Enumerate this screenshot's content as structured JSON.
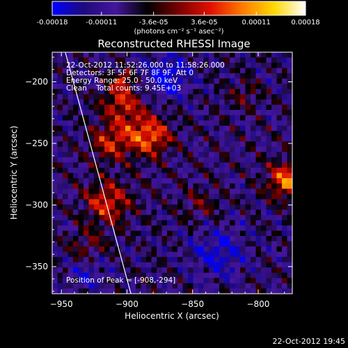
{
  "chart_data": {
    "type": "heatmap",
    "title": "Reconstructed RHESSI Image",
    "xlabel": "Heliocentric X (arcsec)",
    "ylabel": "Heliocentric Y (arcsec)",
    "xlim": [
      -957,
      -774
    ],
    "ylim": [
      -372,
      -176
    ],
    "x_ticks": [
      -950,
      -900,
      -850,
      -800
    ],
    "y_ticks": [
      -200,
      -250,
      -300,
      -350
    ],
    "colorbar": {
      "range": [
        -0.00018,
        0.00018
      ],
      "tick_values": [
        -0.00018,
        -0.00011,
        -3.6e-05,
        3.6e-05,
        0.00011,
        0.00018
      ],
      "tick_labels": [
        "-0.00018",
        "-0.00011",
        "-3.6e-05",
        "3.6e-05",
        "0.00011",
        "0.00018"
      ],
      "units": "(photons cm⁻² s⁻¹ asec⁻²)",
      "colormap": [
        "#0000ff",
        "#1f0a7e",
        "#44169c",
        "#000000",
        "#7a0000",
        "#e01000",
        "#ff7a00",
        "#ffd800",
        "#ffffff"
      ]
    },
    "annotations": [
      "22-Oct-2012 11:52:26.000 to 11:58:26.000",
      "Detectors: 3F 5F 6F 7F 8F 9F, Att 0",
      "Energy Range: 25.0 - 50.0 keV",
      "Clean    Total counts: 9.45E+03"
    ],
    "peak_label": "Position of Peak = [-908,-294]",
    "peak": [
      -908,
      -294
    ],
    "limb": [
      [
        -947,
        -176
      ],
      [
        -897,
        -372
      ]
    ],
    "hotspots": [
      {
        "x": -915,
        "y": -298,
        "value": 0.00012,
        "spread": 12
      },
      {
        "x": -905,
        "y": -215,
        "value": 0.0001,
        "spread": 10
      },
      {
        "x": -895,
        "y": -240,
        "value": 9e-05,
        "spread": 14
      },
      {
        "x": -880,
        "y": -245,
        "value": 0.0001,
        "spread": 10
      },
      {
        "x": -915,
        "y": -250,
        "value": 8e-05,
        "spread": 10
      },
      {
        "x": -930,
        "y": -335,
        "value": 6e-05,
        "spread": 10
      },
      {
        "x": -903,
        "y": -198,
        "value": 0.00011,
        "spread": 5
      },
      {
        "x": -778,
        "y": -280,
        "value": 0.00016,
        "spread": 10
      },
      {
        "x": -810,
        "y": -210,
        "value": 5e-05,
        "spread": 8
      },
      {
        "x": -845,
        "y": -300,
        "value": 5e-05,
        "spread": 10
      }
    ],
    "coldspots": [
      {
        "x": -870,
        "y": -195,
        "value": -0.0001,
        "spread": 12
      },
      {
        "x": -830,
        "y": -340,
        "value": -8e-05,
        "spread": 14
      },
      {
        "x": -930,
        "y": -355,
        "value": -6e-05,
        "spread": 10
      }
    ]
  },
  "footer": {
    "date_stamp": "22-Oct-2012 19:45"
  }
}
